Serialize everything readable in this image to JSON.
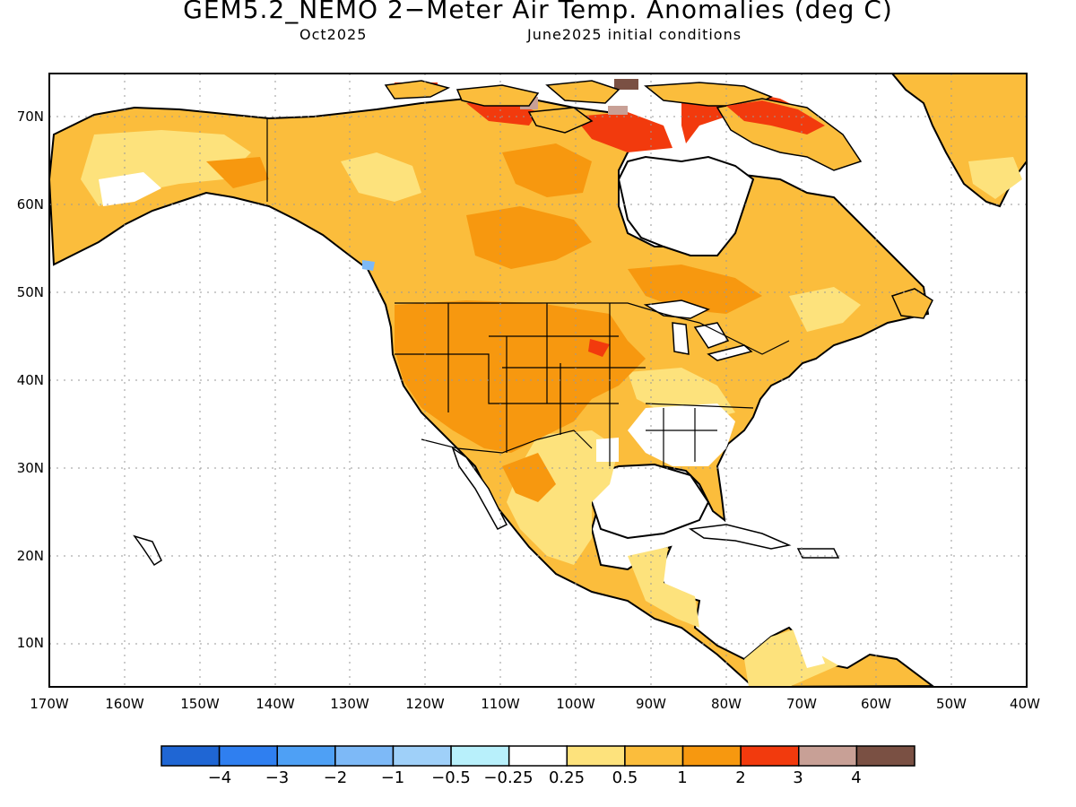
{
  "title": "GEM5.2_NEMO 2−Meter Air Temp. Anomalies (deg C)",
  "subtitle_left": "Oct2025",
  "subtitle_right": "June2025 initial conditions",
  "map": {
    "lon_range": [
      -170,
      -40
    ],
    "lat_range": [
      5,
      75
    ],
    "lon_ticks": [
      "170W",
      "160W",
      "150W",
      "140W",
      "130W",
      "120W",
      "110W",
      "100W",
      "90W",
      "80W",
      "70W",
      "60W",
      "50W",
      "40W"
    ],
    "lat_ticks": [
      "10N",
      "20N",
      "30N",
      "40N",
      "50N",
      "60N",
      "70N"
    ],
    "grid": "dotted"
  },
  "colorbar": {
    "labels": [
      "−4",
      "−3",
      "−2",
      "−1",
      "−0.5",
      "−0.25",
      "0.25",
      "0.5",
      "1",
      "2",
      "3",
      "4"
    ],
    "colors": [
      "#1f66d4",
      "#2f7ff0",
      "#4ea0f5",
      "#7db9f7",
      "#9fd0f9",
      "#b8f0fb",
      "#ffffff",
      "#fde27c",
      "#fbbd3c",
      "#f7980f",
      "#f23a0d",
      "#c8a096",
      "#7a5043"
    ]
  }
}
